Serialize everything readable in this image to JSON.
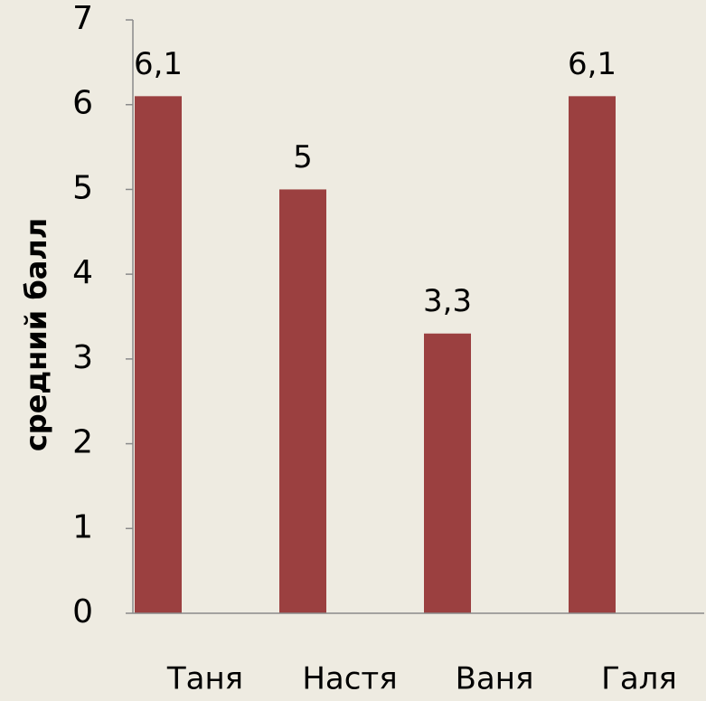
{
  "chart_data": {
    "type": "bar",
    "ylabel": "средний балл",
    "categories": [
      "Таня",
      "Настя",
      "Ваня",
      "Галя"
    ],
    "values": [
      6.1,
      5,
      3.3,
      6.1
    ],
    "value_labels": [
      "6,1",
      "5",
      "3,3",
      "6,1"
    ],
    "color": "#9b4040",
    "ylim": [
      0,
      7
    ],
    "yticks": [
      0,
      1,
      2,
      3,
      4,
      5,
      6,
      7
    ]
  }
}
